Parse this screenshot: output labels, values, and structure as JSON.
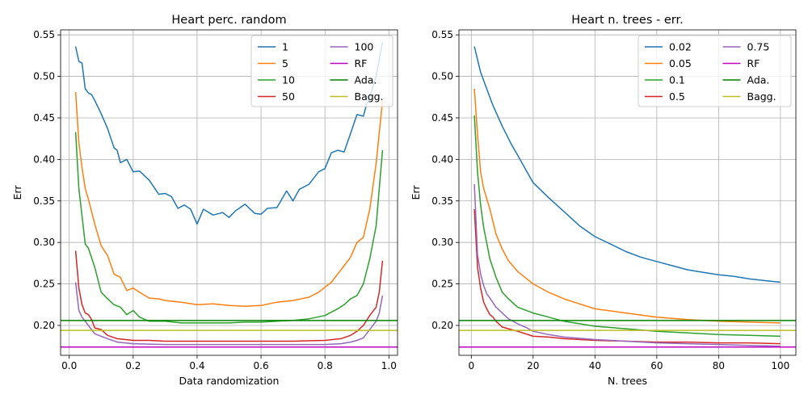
{
  "chart_data": [
    {
      "type": "line",
      "title": "Heart perc. random",
      "xlabel": "Data randomization",
      "ylabel": "Err",
      "xlim": [
        -0.027,
        1.027
      ],
      "ylim": [
        0.164,
        0.556
      ],
      "xticks": [
        0.0,
        0.2,
        0.4,
        0.6,
        0.8,
        1.0
      ],
      "xtick_labels": [
        "0.0",
        "0.2",
        "0.4",
        "0.6",
        "0.8",
        "1.0"
      ],
      "yticks": [
        0.2,
        0.25,
        0.3,
        0.35,
        0.4,
        0.45,
        0.5,
        0.55
      ],
      "ytick_labels": [
        "0.20",
        "0.25",
        "0.30",
        "0.35",
        "0.40",
        "0.45",
        "0.50",
        "0.55"
      ],
      "grid": true,
      "legend": "top-right, 2 columns",
      "series": [
        {
          "name": "1",
          "color": "#1f77b4",
          "x": [
            0.02,
            0.03,
            0.04,
            0.05,
            0.06,
            0.07,
            0.08,
            0.1,
            0.12,
            0.14,
            0.15,
            0.16,
            0.18,
            0.2,
            0.22,
            0.25,
            0.28,
            0.3,
            0.32,
            0.34,
            0.36,
            0.38,
            0.4,
            0.42,
            0.45,
            0.48,
            0.5,
            0.52,
            0.55,
            0.58,
            0.6,
            0.62,
            0.65,
            0.68,
            0.7,
            0.72,
            0.75,
            0.78,
            0.8,
            0.82,
            0.84,
            0.86,
            0.88,
            0.9,
            0.92,
            0.93,
            0.94,
            0.96,
            0.98
          ],
          "values": [
            0.536,
            0.518,
            0.516,
            0.485,
            0.48,
            0.478,
            0.471,
            0.455,
            0.437,
            0.414,
            0.411,
            0.396,
            0.4,
            0.385,
            0.386,
            0.375,
            0.358,
            0.359,
            0.355,
            0.341,
            0.345,
            0.34,
            0.322,
            0.34,
            0.333,
            0.336,
            0.33,
            0.338,
            0.346,
            0.335,
            0.334,
            0.341,
            0.342,
            0.362,
            0.35,
            0.364,
            0.37,
            0.385,
            0.389,
            0.408,
            0.411,
            0.409,
            0.431,
            0.454,
            0.452,
            0.466,
            0.475,
            0.5,
            0.541
          ]
        },
        {
          "name": "5",
          "color": "#ff7f0e",
          "x": [
            0.02,
            0.03,
            0.04,
            0.05,
            0.06,
            0.08,
            0.1,
            0.12,
            0.14,
            0.16,
            0.18,
            0.2,
            0.22,
            0.25,
            0.28,
            0.3,
            0.35,
            0.4,
            0.45,
            0.5,
            0.55,
            0.6,
            0.65,
            0.7,
            0.75,
            0.78,
            0.8,
            0.82,
            0.84,
            0.86,
            0.88,
            0.9,
            0.92,
            0.94,
            0.96,
            0.98
          ],
          "values": [
            0.481,
            0.42,
            0.39,
            0.365,
            0.352,
            0.322,
            0.296,
            0.284,
            0.262,
            0.258,
            0.242,
            0.245,
            0.24,
            0.233,
            0.232,
            0.23,
            0.228,
            0.225,
            0.226,
            0.224,
            0.223,
            0.224,
            0.228,
            0.23,
            0.234,
            0.24,
            0.246,
            0.252,
            0.262,
            0.272,
            0.282,
            0.3,
            0.306,
            0.34,
            0.395,
            0.47
          ]
        },
        {
          "name": "10",
          "color": "#2ca02c",
          "x": [
            0.02,
            0.03,
            0.04,
            0.05,
            0.06,
            0.08,
            0.1,
            0.12,
            0.14,
            0.16,
            0.18,
            0.2,
            0.22,
            0.25,
            0.3,
            0.35,
            0.4,
            0.45,
            0.5,
            0.55,
            0.6,
            0.65,
            0.7,
            0.75,
            0.8,
            0.84,
            0.86,
            0.88,
            0.9,
            0.92,
            0.94,
            0.96,
            0.98
          ],
          "values": [
            0.433,
            0.365,
            0.332,
            0.298,
            0.293,
            0.27,
            0.24,
            0.232,
            0.225,
            0.222,
            0.213,
            0.218,
            0.21,
            0.205,
            0.205,
            0.203,
            0.203,
            0.203,
            0.203,
            0.204,
            0.204,
            0.205,
            0.206,
            0.208,
            0.212,
            0.22,
            0.225,
            0.232,
            0.236,
            0.25,
            0.28,
            0.32,
            0.411
          ]
        },
        {
          "name": "50",
          "color": "#d62728",
          "x": [
            0.02,
            0.03,
            0.04,
            0.05,
            0.06,
            0.07,
            0.08,
            0.1,
            0.12,
            0.15,
            0.2,
            0.25,
            0.3,
            0.4,
            0.5,
            0.6,
            0.7,
            0.8,
            0.85,
            0.88,
            0.9,
            0.92,
            0.94,
            0.96,
            0.97,
            0.98
          ],
          "values": [
            0.29,
            0.245,
            0.225,
            0.215,
            0.213,
            0.207,
            0.197,
            0.195,
            0.188,
            0.184,
            0.182,
            0.182,
            0.181,
            0.181,
            0.181,
            0.181,
            0.181,
            0.182,
            0.184,
            0.188,
            0.193,
            0.2,
            0.212,
            0.222,
            0.24,
            0.278
          ]
        },
        {
          "name": "100",
          "color": "#9467bd",
          "x": [
            0.02,
            0.03,
            0.04,
            0.05,
            0.06,
            0.08,
            0.1,
            0.12,
            0.15,
            0.2,
            0.3,
            0.4,
            0.5,
            0.6,
            0.7,
            0.8,
            0.85,
            0.88,
            0.9,
            0.92,
            0.94,
            0.96,
            0.97,
            0.98
          ],
          "values": [
            0.252,
            0.218,
            0.21,
            0.205,
            0.2,
            0.19,
            0.187,
            0.184,
            0.18,
            0.178,
            0.177,
            0.177,
            0.177,
            0.177,
            0.177,
            0.177,
            0.178,
            0.18,
            0.182,
            0.185,
            0.195,
            0.205,
            0.215,
            0.236
          ]
        },
        {
          "name": "RF",
          "color": "#c000c0",
          "hline": 0.174
        },
        {
          "name": "Ada.",
          "color": "#008000",
          "hline": 0.206
        },
        {
          "name": "Bagg.",
          "color": "#bcbd22",
          "hline": 0.194
        }
      ]
    },
    {
      "type": "line",
      "title": "Heart n. trees - err.",
      "xlabel": "N. trees",
      "ylabel": "Err",
      "xlim": [
        -4.0,
        105.0
      ],
      "ylim": [
        0.164,
        0.556
      ],
      "xticks": [
        0,
        20,
        40,
        60,
        80,
        100
      ],
      "xtick_labels": [
        "0",
        "20",
        "40",
        "60",
        "80",
        "100"
      ],
      "yticks": [
        0.2,
        0.25,
        0.3,
        0.35,
        0.4,
        0.45,
        0.5,
        0.55
      ],
      "ytick_labels": [
        "0.20",
        "0.25",
        "0.30",
        "0.35",
        "0.40",
        "0.45",
        "0.50",
        "0.55"
      ],
      "grid": true,
      "legend": "top-right, 2 columns",
      "series": [
        {
          "name": "0.02",
          "color": "#1f77b4",
          "x": [
            1,
            3,
            5,
            7,
            10,
            13,
            15,
            18,
            20,
            25,
            30,
            35,
            40,
            45,
            50,
            55,
            60,
            65,
            70,
            75,
            80,
            85,
            90,
            95,
            100
          ],
          "values": [
            0.536,
            0.505,
            0.485,
            0.465,
            0.44,
            0.418,
            0.405,
            0.385,
            0.372,
            0.354,
            0.337,
            0.32,
            0.307,
            0.298,
            0.289,
            0.282,
            0.277,
            0.272,
            0.267,
            0.264,
            0.261,
            0.259,
            0.256,
            0.254,
            0.252
          ]
        },
        {
          "name": "0.05",
          "color": "#ff7f0e",
          "x": [
            1,
            2,
            3,
            4,
            6,
            8,
            10,
            12,
            15,
            20,
            25,
            30,
            35,
            40,
            50,
            60,
            70,
            80,
            90,
            100
          ],
          "values": [
            0.485,
            0.43,
            0.385,
            0.365,
            0.34,
            0.31,
            0.292,
            0.278,
            0.265,
            0.25,
            0.24,
            0.232,
            0.226,
            0.22,
            0.215,
            0.21,
            0.207,
            0.205,
            0.204,
            0.203
          ]
        },
        {
          "name": "0.1",
          "color": "#2ca02c",
          "x": [
            1,
            2,
            3,
            4,
            6,
            8,
            10,
            12,
            15,
            20,
            25,
            30,
            40,
            50,
            60,
            70,
            80,
            90,
            100
          ],
          "values": [
            0.453,
            0.385,
            0.345,
            0.318,
            0.28,
            0.258,
            0.24,
            0.232,
            0.222,
            0.215,
            0.21,
            0.205,
            0.199,
            0.196,
            0.193,
            0.191,
            0.189,
            0.188,
            0.187
          ]
        },
        {
          "name": "0.5",
          "color": "#d62728",
          "x": [
            1,
            2,
            3,
            4,
            5,
            6,
            7,
            8,
            10,
            12,
            15,
            20,
            25,
            30,
            40,
            50,
            60,
            70,
            80,
            90,
            100
          ],
          "values": [
            0.34,
            0.27,
            0.245,
            0.228,
            0.22,
            0.213,
            0.21,
            0.205,
            0.198,
            0.196,
            0.193,
            0.187,
            0.186,
            0.184,
            0.182,
            0.181,
            0.18,
            0.18,
            0.179,
            0.179,
            0.178
          ]
        },
        {
          "name": "0.75",
          "color": "#9467bd",
          "x": [
            1,
            2,
            3,
            4,
            5,
            6,
            8,
            10,
            12,
            15,
            18,
            20,
            25,
            30,
            40,
            50,
            60,
            70,
            80,
            90,
            100
          ],
          "values": [
            0.37,
            0.285,
            0.262,
            0.248,
            0.238,
            0.233,
            0.222,
            0.215,
            0.208,
            0.202,
            0.197,
            0.193,
            0.189,
            0.186,
            0.183,
            0.181,
            0.179,
            0.178,
            0.177,
            0.176,
            0.175
          ]
        },
        {
          "name": "RF",
          "color": "#c000c0",
          "hline": 0.174
        },
        {
          "name": "Ada.",
          "color": "#008000",
          "hline": 0.206
        },
        {
          "name": "Bagg.",
          "color": "#bcbd22",
          "hline": 0.194
        }
      ]
    }
  ]
}
